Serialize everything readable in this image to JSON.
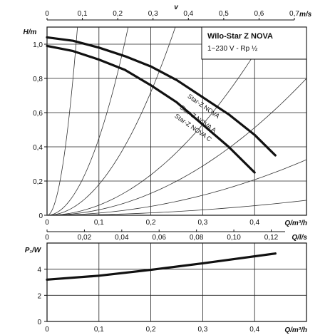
{
  "chart_data": [
    {
      "type": "line",
      "title": "Wilo-Star Z NOVA",
      "subtitle": "1~230 V - Rp ½",
      "ylabel": "H/m",
      "xlabel": "Q/m³/h",
      "top_axis": {
        "label": "v",
        "unit": "m/s",
        "ticks": [
          "0",
          "0,1",
          "0,2",
          "0,3",
          "0,4",
          "0,5",
          "0,6",
          "0,7"
        ]
      },
      "xlim": [
        0,
        0.5
      ],
      "ylim": [
        0,
        1.1
      ],
      "xticks": [
        "0",
        "0,1",
        "0,2",
        "0,3",
        "0,4"
      ],
      "yticks": [
        "0",
        "0,2",
        "0,4",
        "0,6",
        "0,8",
        "1,0"
      ],
      "grid": true,
      "series": [
        {
          "name": "Star-Z NOVA",
          "x": [
            0,
            0.05,
            0.1,
            0.15,
            0.2,
            0.25,
            0.3,
            0.35,
            0.4,
            0.44
          ],
          "y": [
            1.04,
            1.02,
            0.98,
            0.93,
            0.87,
            0.79,
            0.69,
            0.59,
            0.47,
            0.35
          ]
        },
        {
          "name": "Star-Z NOVA A",
          "x": [
            0,
            0.05,
            0.1,
            0.15,
            0.2,
            0.25,
            0.3,
            0.35,
            0.4
          ],
          "y": [
            0.99,
            0.96,
            0.91,
            0.85,
            0.76,
            0.66,
            0.53,
            0.4,
            0.25
          ]
        },
        {
          "name": "Star-Z NOVA C",
          "x": [
            0,
            0.05,
            0.1,
            0.15,
            0.2,
            0.25,
            0.3,
            0.35,
            0.4
          ],
          "y": [
            0.99,
            0.96,
            0.91,
            0.85,
            0.76,
            0.66,
            0.53,
            0.4,
            0.25
          ]
        }
      ],
      "system_curve_coefficients": [
        320,
        45,
        18,
        5.9,
        3.2,
        1.3,
        0.35
      ]
    },
    {
      "type": "line",
      "ylabel": "P₁/W",
      "xlabel": "Q/m³/h",
      "top_axis": {
        "unit": "Q/l/s",
        "ticks": [
          "0",
          "0,02",
          "0,04",
          "0,06",
          "0,08",
          "0,10",
          "0,12"
        ]
      },
      "xlim": [
        0,
        0.5
      ],
      "ylim": [
        0,
        6
      ],
      "xticks": [
        "0",
        "0,1",
        "0,2",
        "0,3",
        "0,4"
      ],
      "yticks": [
        "0",
        "2",
        "4"
      ],
      "grid": true,
      "series": [
        {
          "name": "",
          "x": [
            0,
            0.1,
            0.2,
            0.3,
            0.44
          ],
          "y": [
            3.2,
            3.5,
            3.95,
            4.45,
            5.2
          ]
        }
      ]
    }
  ]
}
